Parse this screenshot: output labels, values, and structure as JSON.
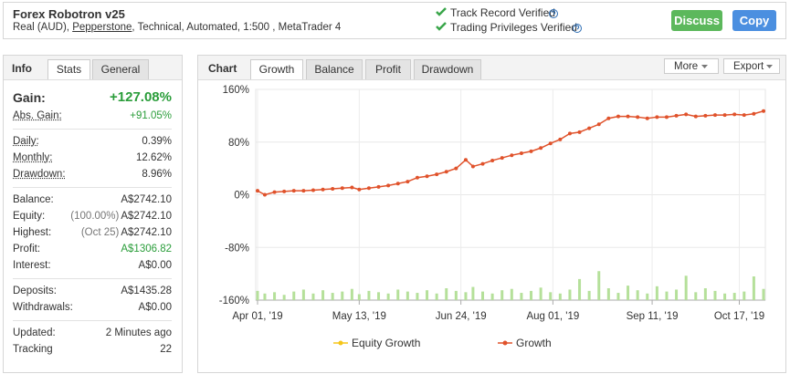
{
  "header": {
    "title": "Forex Robotron v25",
    "subtitle_parts": [
      "Real (AUD), ",
      "Pepperstone",
      ", Technical, Automated, 1:500 , MetaTrader 4"
    ],
    "verified": [
      "Track Record Verified",
      "Trading Privileges Verified"
    ],
    "buttons": [
      "Discuss",
      "Copy"
    ]
  },
  "info_panel": {
    "title": "Info",
    "tabs": [
      "Stats",
      "General"
    ],
    "groups": [
      [
        {
          "label": "Gain:",
          "value": "+127.08%",
          "color": "#2a9d3a"
        },
        {
          "label": "Abs. Gain:",
          "value": "+91.05%",
          "color": "#2a9d3a"
        }
      ],
      [
        {
          "label": "Daily:",
          "value": "0.39%"
        },
        {
          "label": "Monthly:",
          "value": "12.62%"
        },
        {
          "label": "Drawdown:",
          "value": "8.96%"
        }
      ],
      [
        {
          "label": "Balance:",
          "value": "A$2742.10"
        },
        {
          "label": "Equity:",
          "note": "(100.00%)",
          "value": "A$2742.10"
        },
        {
          "label": "Highest:",
          "note": "(Oct 25)",
          "value": "A$2742.10"
        },
        {
          "label": "Profit:",
          "value": "A$1306.82",
          "color": "#2a9d3a"
        },
        {
          "label": "Interest:",
          "value": "A$0.00"
        }
      ],
      [
        {
          "label": "Deposits:",
          "value": "A$1435.28"
        },
        {
          "label": "Withdrawals:",
          "value": "A$0.00"
        }
      ],
      [
        {
          "label": "Updated:",
          "value": "2 Minutes ago"
        },
        {
          "label": "Tracking",
          "value": "22"
        }
      ]
    ]
  },
  "chart_panel": {
    "title": "Chart",
    "tabs": [
      "Growth",
      "Balance",
      "Profit",
      "Drawdown"
    ],
    "menus": [
      "More",
      "Export"
    ]
  },
  "chart_data": {
    "type": "line",
    "x": [
      "2019-04-01",
      "2019-04-04",
      "2019-04-08",
      "2019-04-12",
      "2019-04-16",
      "2019-04-20",
      "2019-04-24",
      "2019-04-28",
      "2019-05-02",
      "2019-05-06",
      "2019-05-10",
      "2019-05-13",
      "2019-05-17",
      "2019-05-21",
      "2019-05-25",
      "2019-05-29",
      "2019-06-02",
      "2019-06-06",
      "2019-06-10",
      "2019-06-14",
      "2019-06-18",
      "2019-06-22",
      "2019-06-26",
      "2019-06-29",
      "2019-07-03",
      "2019-07-07",
      "2019-07-11",
      "2019-07-15",
      "2019-07-19",
      "2019-07-23",
      "2019-07-27",
      "2019-07-31",
      "2019-08-04",
      "2019-08-08",
      "2019-08-12",
      "2019-08-16",
      "2019-08-20",
      "2019-08-24",
      "2019-08-28",
      "2019-09-01",
      "2019-09-05",
      "2019-09-09",
      "2019-09-13",
      "2019-09-17",
      "2019-09-21",
      "2019-09-25",
      "2019-09-29",
      "2019-10-03",
      "2019-10-07",
      "2019-10-11",
      "2019-10-15",
      "2019-10-19",
      "2019-10-23",
      "2019-10-27"
    ],
    "series": [
      {
        "name": "Equity Growth",
        "color": "#f5c518",
        "values": [
          null,
          null,
          null,
          null,
          null,
          null,
          null,
          null,
          null,
          null,
          null,
          null,
          null,
          null,
          null,
          null,
          null,
          null,
          null,
          null,
          null,
          null,
          null,
          null,
          null,
          null,
          null,
          null,
          null,
          null,
          null,
          null,
          null,
          null,
          null,
          null,
          null,
          null,
          null,
          null,
          null,
          null,
          null,
          null,
          null,
          null,
          null,
          null,
          null,
          null,
          null,
          null,
          null,
          null
        ]
      },
      {
        "name": "Growth",
        "color": "#e0522b",
        "values": [
          6,
          0,
          4,
          5,
          6,
          6,
          7,
          8,
          9,
          10,
          11,
          8,
          10,
          12,
          14,
          17,
          20,
          26,
          28,
          31,
          35,
          40,
          53,
          43,
          47,
          52,
          56,
          60,
          63,
          66,
          71,
          78,
          84,
          93,
          95,
          101,
          107,
          116,
          119,
          119,
          118,
          116,
          118,
          118,
          120,
          122,
          119,
          120,
          121,
          121,
          122,
          121,
          123,
          127.08
        ]
      }
    ],
    "bars": {
      "color": "#b5e09a",
      "values": [
        -146,
        -150,
        -148,
        -152,
        -147,
        -144,
        -150,
        -145,
        -149,
        -147,
        -143,
        -151,
        -146,
        -148,
        -150,
        -144,
        -147,
        -149,
        -145,
        -150,
        -142,
        -146,
        -148,
        -140,
        -147,
        -150,
        -145,
        -143,
        -149,
        -146,
        -141,
        -148,
        -150,
        -144,
        -128,
        -146,
        -116,
        -142,
        -149,
        -138,
        -145,
        -150,
        -139,
        -147,
        -144,
        -123,
        -148,
        -142,
        -146,
        -150,
        -149,
        -147,
        -124,
        -143
      ]
    },
    "xlim": [
      "2019-04-01",
      "2019-10-27"
    ],
    "xticks": [
      {
        "value": "2019-04-01",
        "label": "Apr 01, '19"
      },
      {
        "value": "2019-05-13",
        "label": "May 13, '19"
      },
      {
        "value": "2019-06-24",
        "label": "Jun 24, '19"
      },
      {
        "value": "2019-08-01",
        "label": "Aug 01, '19"
      },
      {
        "value": "2019-09-11",
        "label": "Sep 11, '19"
      },
      {
        "value": "2019-10-17",
        "label": "Oct 17, '19"
      }
    ],
    "ylim": [
      -160,
      160
    ],
    "yticks": [
      {
        "value": 160,
        "label": "160%"
      },
      {
        "value": 80,
        "label": "80%"
      },
      {
        "value": 0,
        "label": "0%"
      },
      {
        "value": -80,
        "label": "-80%"
      },
      {
        "value": -160,
        "label": "-160%"
      }
    ],
    "grid": true
  }
}
